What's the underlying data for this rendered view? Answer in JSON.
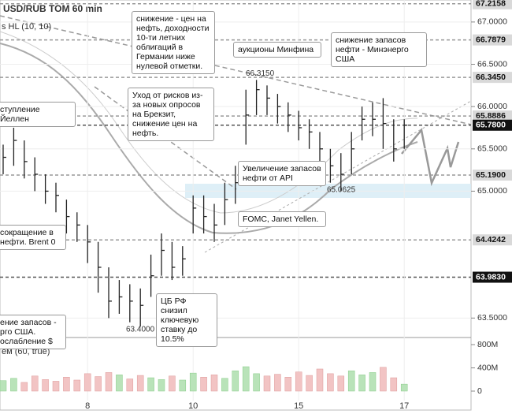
{
  "chart_data": {
    "type": "ohlc",
    "title": "USD/RUB TOM 60 min",
    "indicator_labels": [
      "s HL (10, 10)",
      "ём (60, true)"
    ],
    "categories": [
      null,
      null,
      null,
      null,
      null,
      null,
      null,
      null,
      "8",
      null,
      null,
      null,
      null,
      null,
      null,
      null,
      null,
      null,
      "10",
      null,
      null,
      null,
      null,
      null,
      null,
      null,
      null,
      null,
      "15",
      null,
      null,
      null,
      null,
      null,
      null,
      null,
      null,
      null,
      "17"
    ],
    "series": [
      {
        "name": "high",
        "values": [
          65.55,
          65.75,
          65.6,
          65.4,
          65.2,
          65.1,
          64.9,
          64.75,
          64.6,
          64.4,
          64.1,
          63.95,
          63.9,
          63.85,
          64.25,
          64.5,
          64.4,
          64.35,
          64.95,
          64.95,
          64.85,
          65.1,
          65.3,
          66.2,
          66.315,
          66.25,
          66.15,
          66.05,
          65.95,
          65.85,
          65.7,
          65.5,
          65.45,
          65.7,
          66.0,
          66.05,
          66.1,
          65.85,
          65.85
        ]
      },
      {
        "name": "low",
        "values": [
          65.2,
          65.3,
          65.15,
          65.0,
          64.85,
          64.75,
          64.5,
          64.4,
          64.15,
          63.8,
          63.5,
          63.55,
          63.45,
          63.4,
          63.75,
          64.0,
          63.95,
          64.0,
          64.5,
          64.5,
          64.4,
          64.6,
          64.85,
          65.55,
          65.9,
          65.9,
          65.8,
          65.7,
          65.6,
          65.5,
          65.3,
          65.1,
          65.0,
          65.2,
          65.6,
          65.65,
          65.5,
          65.35,
          65.5
        ]
      },
      {
        "name": "close",
        "values": [
          65.4,
          65.6,
          65.35,
          65.2,
          65.0,
          64.95,
          64.7,
          64.6,
          64.4,
          64.1,
          63.7,
          63.75,
          63.7,
          63.65,
          64.0,
          64.3,
          64.1,
          64.2,
          64.8,
          64.7,
          64.6,
          64.9,
          65.1,
          65.9,
          66.2,
          66.1,
          66.0,
          65.9,
          65.75,
          65.7,
          65.5,
          65.3,
          65.2,
          65.5,
          65.85,
          65.85,
          65.8,
          65.5,
          65.78
        ]
      }
    ],
    "color": "#222222",
    "ylim": [
      63.27,
      67.26
    ],
    "yticks": [
      {
        "value": 63.5,
        "label": "63.5000"
      },
      {
        "value": 65,
        "label": "65.0000"
      },
      {
        "value": 65.5,
        "label": "65.5000"
      },
      {
        "value": 66,
        "label": "66.0000"
      },
      {
        "value": 66.5,
        "label": "66.5000"
      },
      {
        "value": 67,
        "label": "67.0000"
      }
    ],
    "levels": [
      {
        "value": 67.2158,
        "color": "#d9d9d9"
      },
      {
        "value": 66.7879,
        "color": "#d9d9d9"
      },
      {
        "value": {
          "value": 66.345,
          "label": "66.3450"
        },
        "color": "#d9d9d9"
      },
      {
        "value": 65.8886,
        "color": "#d9d9d9"
      },
      {
        "value": {
          "value": 65.78,
          "label": "65.7800"
        },
        "color": "#111111"
      },
      {
        "value": {
          "value": 65.19,
          "label": "65.1900"
        },
        "color": "#d9d9d9"
      },
      {
        "value": 64.4242,
        "color": "#d9d9d9"
      },
      {
        "value": {
          "value": 63.983,
          "label": "63.9830"
        },
        "color": "#111111"
      }
    ],
    "point_labels": {
      "values": [
        66.315,
        63.4,
        65.0625
      ],
      "value_labels": [
        "66.3150",
        "63.4000",
        "65.0625"
      ]
    },
    "annotations": [
      "снижение - цен на нефть, доходности 10-ти летних облигаций в Германии ниже нулевой отметки.",
      "аукционы Минфина",
      "снижение запасов нефти - Минэнерго США",
      "Уход от рисков из-за новых опросов на Брекзит, снижение цен на нефть.",
      "ступление Йеллен",
      "Увеличение запасов нефти от API",
      "FOMC, Janet Yellen.",
      "сокращение в нефти. Brent 0",
      "ЦБ РФ снизил ключевую ставку до 10.5%",
      "ение запасов - рго США. ослабление $"
    ],
    "volume": {
      "values": [
        180,
        220,
        150,
        260,
        200,
        170,
        240,
        190,
        300,
        250,
        320,
        280,
        210,
        270,
        230,
        200,
        260,
        190,
        310,
        240,
        280,
        220,
        350,
        420,
        300,
        260,
        290,
        240,
        330,
        270,
        380,
        300,
        260,
        350,
        280,
        320,
        410,
        230,
        120
      ],
      "up_color": "#b9e3b9",
      "down_color": "#f2c4c4",
      "ylim": [
        -163,
        922
      ],
      "yticks": [
        {
          "value": 0,
          "label": "0"
        },
        {
          "value": 400,
          "label": "400M"
        },
        {
          "value": 800,
          "label": "800M"
        }
      ]
    }
  }
}
